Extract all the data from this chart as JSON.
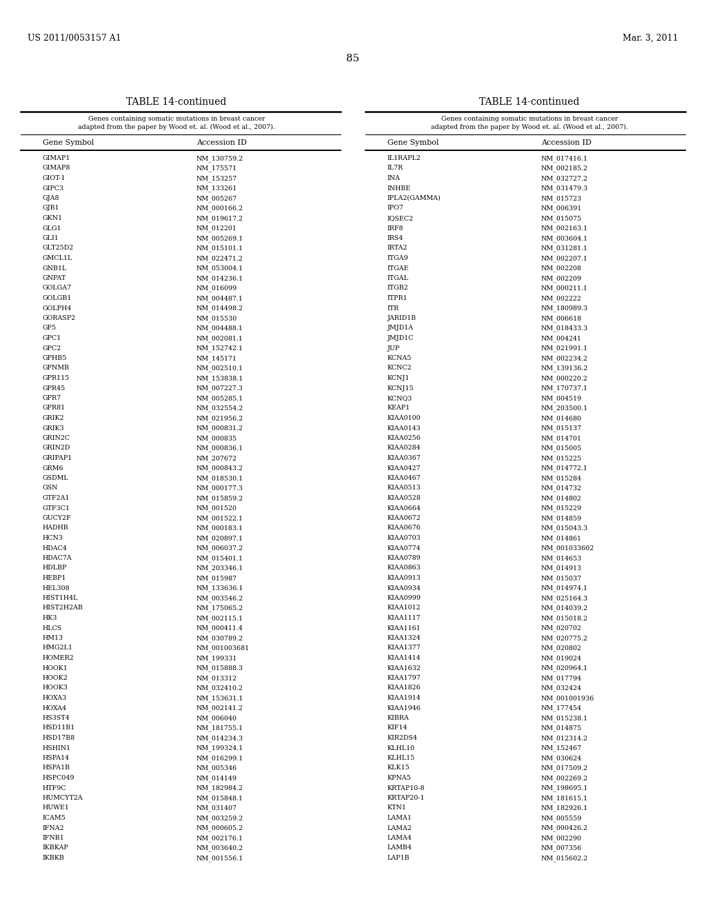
{
  "header_left": "US 2011/0053157 A1",
  "header_right": "Mar. 3, 2011",
  "page_number": "85",
  "table_title": "TABLE 14-continued",
  "table_subtitle": "Genes containing somatic mutations in breast cancer\nadapted from the paper by Wood et. al. (Wood et al., 2007).",
  "col1_header": "Gene Symbol",
  "col2_header": "Accession ID",
  "left_data": [
    [
      "GIMAP1",
      "NM_130759.2"
    ],
    [
      "GIMAP8",
      "NM_175571"
    ],
    [
      "GIOT-1",
      "NM_153257"
    ],
    [
      "GIPC3",
      "NM_133261"
    ],
    [
      "GJA8",
      "NM_005267"
    ],
    [
      "GJB1",
      "NM_000166.2"
    ],
    [
      "GKN1",
      "NM_019617.2"
    ],
    [
      "GLG1",
      "NM_012201"
    ],
    [
      "GLI1",
      "NM_005269.1"
    ],
    [
      "GLT25D2",
      "NM_015101.1"
    ],
    [
      "GMCL1L",
      "NM_022471.2"
    ],
    [
      "GNB1L",
      "NM_053004.1"
    ],
    [
      "GNPAT",
      "NM_014236.1"
    ],
    [
      "GOLGA7",
      "NM_016099"
    ],
    [
      "GOLGB1",
      "NM_004487.1"
    ],
    [
      "GOLPH4",
      "NM_014498.2"
    ],
    [
      "GORASP2",
      "NM_015530"
    ],
    [
      "GP5",
      "NM_004488.1"
    ],
    [
      "GPC1",
      "NM_002081.1"
    ],
    [
      "GPC2",
      "NM_152742.1"
    ],
    [
      "GPHB5",
      "NM_145171"
    ],
    [
      "GPNMB",
      "NM_002510.1"
    ],
    [
      "GPR115",
      "NM_153838.1"
    ],
    [
      "GPR45",
      "NM_007227.3"
    ],
    [
      "GPR7",
      "NM_005285.1"
    ],
    [
      "GPR81",
      "NM_032554.2"
    ],
    [
      "GRIK2",
      "NM_021956.2"
    ],
    [
      "GRIK3",
      "NM_000831.2"
    ],
    [
      "GRIN2C",
      "NM_000835"
    ],
    [
      "GRIN2D",
      "NM_000836.1"
    ],
    [
      "GRIPAP1",
      "NM_207672"
    ],
    [
      "GRM6",
      "NM_000843.2"
    ],
    [
      "GSDML",
      "NM_018530.1"
    ],
    [
      "GSN",
      "NM_000177.3"
    ],
    [
      "GTF2A1",
      "NM_015859.2"
    ],
    [
      "GTF3C1",
      "NM_001520"
    ],
    [
      "GUCY2F",
      "NM_001522.1"
    ],
    [
      "HADHB",
      "NM_000183.1"
    ],
    [
      "HCN3",
      "NM_020897.1"
    ],
    [
      "HDAC4",
      "NM_006037.2"
    ],
    [
      "HDAC7A",
      "NM_015401.1"
    ],
    [
      "HDLBP",
      "NM_203346.1"
    ],
    [
      "HEBP1",
      "NM_015987"
    ],
    [
      "HEL308",
      "NM_133636.1"
    ],
    [
      "HIST1H4L",
      "NM_003546.2"
    ],
    [
      "HIST2H2AB",
      "NM_175065.2"
    ],
    [
      "HK3",
      "NM_002115.1"
    ],
    [
      "HLCS",
      "NM_000411.4"
    ],
    [
      "HM13",
      "NM_030789.2"
    ],
    [
      "HMG2L1",
      "NM_001003681"
    ],
    [
      "HOMER2",
      "NM_199331"
    ],
    [
      "HOOK1",
      "NM_015888.3"
    ],
    [
      "HOOK2",
      "NM_013312"
    ],
    [
      "HOOK3",
      "NM_032410.2"
    ],
    [
      "HOXA3",
      "NM_153631.1"
    ],
    [
      "HOXA4",
      "NM_002141.2"
    ],
    [
      "HS3ST4",
      "NM_006040"
    ],
    [
      "HSD11B1",
      "NM_181755.1"
    ],
    [
      "HSD17B8",
      "NM_014234.3"
    ],
    [
      "HSHIN1",
      "NM_199324.1"
    ],
    [
      "HSPA14",
      "NM_016299.1"
    ],
    [
      "HSPA1B",
      "NM_005346"
    ],
    [
      "HSPC049",
      "NM_014149"
    ],
    [
      "HTF9C",
      "NM_182984.2"
    ],
    [
      "HUMCYT2A",
      "NM_015848.1"
    ],
    [
      "HUWE1",
      "NM_031407"
    ],
    [
      "ICAM5",
      "NM_003259.2"
    ],
    [
      "IFNA2",
      "NM_000605.2"
    ],
    [
      "IFNB1",
      "NM_002176.1"
    ],
    [
      "IKBKAP",
      "NM_003640.2"
    ],
    [
      "IKBKB",
      "NM_001556.1"
    ]
  ],
  "right_data": [
    [
      "IL1RAPL2",
      "NM_017416.1"
    ],
    [
      "IL7R",
      "NM_002185.2"
    ],
    [
      "INA",
      "NM_032727.2"
    ],
    [
      "INHBE",
      "NM_031479.3"
    ],
    [
      "IPLA2(GAMMA)",
      "NM_015723"
    ],
    [
      "IPO7",
      "NM_006391"
    ],
    [
      "IQSEC2",
      "NM_015075"
    ],
    [
      "IRF8",
      "NM_002163.1"
    ],
    [
      "IRS4",
      "NM_003604.1"
    ],
    [
      "IRTA2",
      "NM_031281.1"
    ],
    [
      "ITGA9",
      "NM_002207.1"
    ],
    [
      "ITGAE",
      "NM_002208"
    ],
    [
      "ITGAL",
      "NM_002209"
    ],
    [
      "ITGB2",
      "NM_000211.1"
    ],
    [
      "ITPR1",
      "NM_002222"
    ],
    [
      "ITR",
      "NM_180989.3"
    ],
    [
      "JARID1B",
      "NM_006618"
    ],
    [
      "JMJD1A",
      "NM_018433.3"
    ],
    [
      "JMJD1C",
      "NM_004241"
    ],
    [
      "JUP",
      "NM_021991.1"
    ],
    [
      "KCNA5",
      "NM_002234.2"
    ],
    [
      "KCNC2",
      "NM_139136.2"
    ],
    [
      "KCNJ1",
      "NM_000220.2"
    ],
    [
      "KCNJ15",
      "NM_170737.1"
    ],
    [
      "KCNQ3",
      "NM_004519"
    ],
    [
      "KEAP1",
      "NM_203500.1"
    ],
    [
      "KIAA0100",
      "NM_014680"
    ],
    [
      "KIAA0143",
      "NM_015137"
    ],
    [
      "KIAA0256",
      "NM_014701"
    ],
    [
      "KIAA0284",
      "NM_015005"
    ],
    [
      "KIAA0367",
      "NM_015225"
    ],
    [
      "KIAA0427",
      "NM_014772.1"
    ],
    [
      "KIAA0467",
      "NM_015284"
    ],
    [
      "KIAA0513",
      "NM_014732"
    ],
    [
      "KIAA0528",
      "NM_014802"
    ],
    [
      "KIAA0664",
      "NM_015229"
    ],
    [
      "KIAA0672",
      "NM_014859"
    ],
    [
      "KIAA0676",
      "NM_015043.3"
    ],
    [
      "KIAA0703",
      "NM_014861"
    ],
    [
      "KIAA0774",
      "NM_001033602"
    ],
    [
      "KIAA0789",
      "NM_014653"
    ],
    [
      "KIAA0863",
      "NM_014913"
    ],
    [
      "KIAA0913",
      "NM_015037"
    ],
    [
      "KIAA0934",
      "NM_014974.1"
    ],
    [
      "KIAA0999",
      "NM_025164.3"
    ],
    [
      "KIAA1012",
      "NM_014039.2"
    ],
    [
      "KIAA1117",
      "NM_015018.2"
    ],
    [
      "KIAA1161",
      "NM_020702"
    ],
    [
      "KIAA1324",
      "NM_020775.2"
    ],
    [
      "KIAA1377",
      "NM_020802"
    ],
    [
      "KIAA1414",
      "NM_019024"
    ],
    [
      "KIAA1632",
      "NM_020964.1"
    ],
    [
      "KIAA1797",
      "NM_017794"
    ],
    [
      "KIAA1826",
      "NM_032424"
    ],
    [
      "KIAA1914",
      "NM_001001936"
    ],
    [
      "KIAA1946",
      "NM_177454"
    ],
    [
      "KIBRA",
      "NM_015238.1"
    ],
    [
      "KIF14",
      "NM_014875"
    ],
    [
      "KIR2DS4",
      "NM_012314.2"
    ],
    [
      "KLHL10",
      "NM_152467"
    ],
    [
      "KLHL15",
      "NM_030624"
    ],
    [
      "KLK15",
      "NM_017509.2"
    ],
    [
      "KPNA5",
      "NM_002269.2"
    ],
    [
      "KRTAP10-8",
      "NM_198695.1"
    ],
    [
      "KRTAP20-1",
      "NM_181615.1"
    ],
    [
      "KTN1",
      "NM_182926.1"
    ],
    [
      "LAMA1",
      "NM_005559"
    ],
    [
      "LAMA2",
      "NM_000426.2"
    ],
    [
      "LAMA4",
      "NM_002290"
    ],
    [
      "LAMB4",
      "NM_007356"
    ],
    [
      "LAP1B",
      "NM_015602.2"
    ]
  ]
}
